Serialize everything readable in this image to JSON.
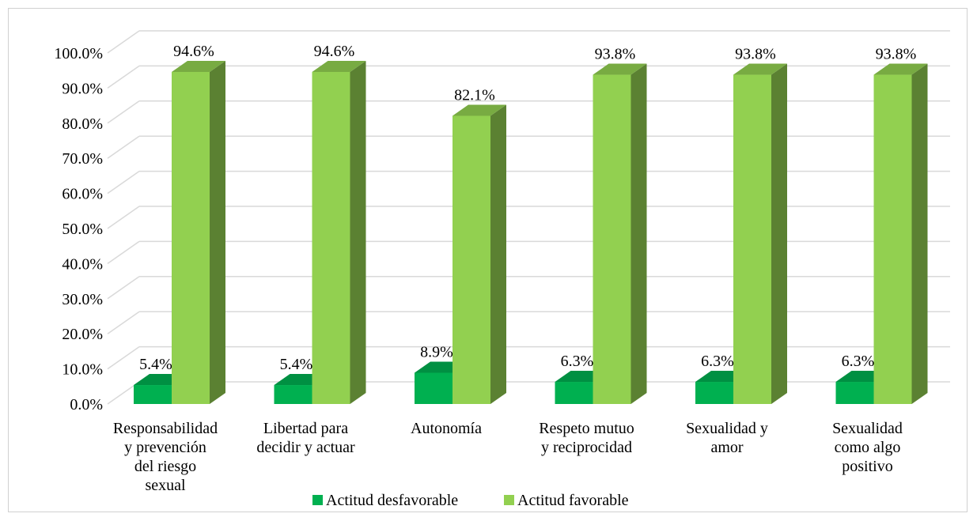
{
  "chart_data": {
    "type": "bar",
    "title": "",
    "xlabel": "",
    "ylabel": "",
    "ylim": [
      0,
      100
    ],
    "y_tick_step": 10,
    "y_tick_suffix": "%",
    "grid": true,
    "three_d": true,
    "legend_position": "bottom",
    "categories": [
      [
        "Responsabilidad",
        "y prevención",
        "del riesgo",
        "sexual"
      ],
      [
        "Libertad para",
        "decidir y actuar"
      ],
      [
        "Autonomía"
      ],
      [
        "Respeto mutuo",
        "y reciprocidad"
      ],
      [
        "Sexualidad y",
        "amor"
      ],
      [
        "Sexualidad",
        "como algo",
        "positivo"
      ]
    ],
    "series": [
      {
        "name": "Actitud desfavorable",
        "color": "#00b050",
        "values": [
          5.4,
          5.4,
          8.9,
          6.3,
          6.3,
          6.3
        ],
        "labels": [
          "5.4%",
          "5.4%",
          "8.9%",
          "6.3%",
          "6.3%",
          "6.3%"
        ]
      },
      {
        "name": "Actitud favorable",
        "color": "#92d050",
        "values": [
          94.6,
          94.6,
          82.1,
          93.8,
          93.8,
          93.8
        ],
        "labels": [
          "94.6%",
          "94.6%",
          "82.1%",
          "93.8%",
          "93.8%",
          "93.8%"
        ]
      }
    ]
  }
}
